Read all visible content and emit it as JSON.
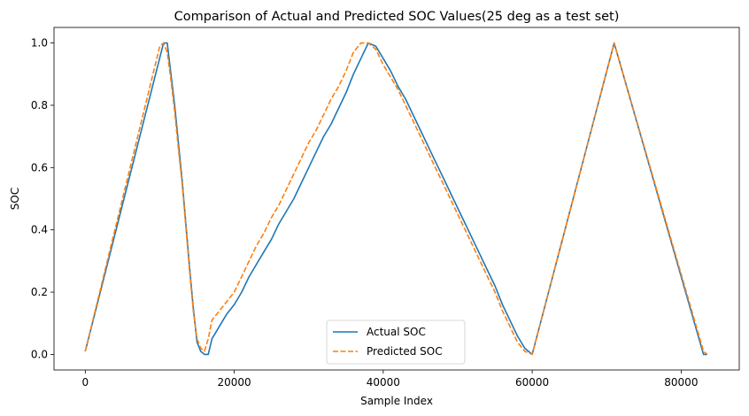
{
  "chart_data": {
    "type": "line",
    "title": "Comparison of Actual and Predicted SOC Values(25 deg as a test set)",
    "xlabel": "Sample Index",
    "ylabel": "SOC",
    "xlim": [
      -4200,
      87800
    ],
    "ylim": [
      -0.05,
      1.05
    ],
    "xticks": [
      0,
      20000,
      40000,
      60000,
      80000
    ],
    "yticks": [
      0.0,
      0.2,
      0.4,
      0.6,
      0.8,
      1.0
    ],
    "grid": false,
    "legend_position": "lower-center",
    "series": [
      {
        "name": "Actual SOC",
        "color": "#1f77b4",
        "style": "solid",
        "x": [
          0,
          10500,
          11000,
          11500,
          12000,
          12500,
          13000,
          13500,
          14000,
          14500,
          15000,
          15500,
          16000,
          16500,
          17000,
          18000,
          19000,
          20000,
          21000,
          22000,
          23000,
          24000,
          25000,
          26000,
          27000,
          28000,
          29000,
          30000,
          31000,
          32000,
          33000,
          34000,
          35000,
          36000,
          37000,
          38000,
          39000,
          40000,
          41000,
          42000,
          43000,
          44000,
          45000,
          46000,
          47000,
          48000,
          49000,
          50000,
          51000,
          52000,
          53000,
          54000,
          55000,
          56000,
          57000,
          58000,
          59000,
          60000,
          71000,
          83000,
          83500
        ],
        "y": [
          0.01,
          1.0,
          1.0,
          0.9,
          0.8,
          0.68,
          0.56,
          0.42,
          0.28,
          0.15,
          0.04,
          0.01,
          0.0,
          0.0,
          0.05,
          0.09,
          0.13,
          0.16,
          0.2,
          0.25,
          0.29,
          0.33,
          0.37,
          0.42,
          0.46,
          0.5,
          0.55,
          0.6,
          0.65,
          0.7,
          0.74,
          0.79,
          0.84,
          0.9,
          0.95,
          1.0,
          0.99,
          0.95,
          0.91,
          0.86,
          0.82,
          0.77,
          0.72,
          0.67,
          0.62,
          0.57,
          0.52,
          0.47,
          0.42,
          0.37,
          0.32,
          0.27,
          0.22,
          0.16,
          0.11,
          0.06,
          0.02,
          0.0,
          1.0,
          0.0,
          0.0
        ]
      },
      {
        "name": "Predicted SOC",
        "color": "#ff7f0e",
        "style": "dashed",
        "x": [
          0,
          10000,
          10500,
          11000,
          11500,
          12000,
          12500,
          13000,
          13500,
          14000,
          14500,
          15000,
          15500,
          16000,
          16500,
          17000,
          18000,
          19000,
          20000,
          21000,
          22000,
          23000,
          24000,
          25000,
          26000,
          27000,
          28000,
          29000,
          30000,
          31000,
          32000,
          33000,
          34000,
          35000,
          36000,
          37000,
          38000,
          39000,
          40000,
          41000,
          42000,
          43000,
          44000,
          45000,
          46000,
          47000,
          48000,
          49000,
          50000,
          51000,
          52000,
          53000,
          54000,
          55000,
          56000,
          57000,
          58000,
          59000,
          60000,
          71000,
          83000,
          83500
        ],
        "y": [
          0.01,
          0.99,
          1.0,
          0.97,
          0.88,
          0.78,
          0.66,
          0.55,
          0.41,
          0.27,
          0.14,
          0.05,
          0.02,
          0.01,
          0.05,
          0.11,
          0.14,
          0.17,
          0.2,
          0.25,
          0.3,
          0.35,
          0.39,
          0.44,
          0.48,
          0.53,
          0.58,
          0.63,
          0.68,
          0.72,
          0.77,
          0.82,
          0.86,
          0.91,
          0.97,
          1.0,
          1.0,
          0.98,
          0.93,
          0.89,
          0.85,
          0.8,
          0.75,
          0.7,
          0.65,
          0.6,
          0.55,
          0.5,
          0.45,
          0.4,
          0.35,
          0.3,
          0.25,
          0.2,
          0.14,
          0.09,
          0.04,
          0.01,
          0.0,
          1.0,
          0.01,
          0.0
        ]
      }
    ]
  }
}
